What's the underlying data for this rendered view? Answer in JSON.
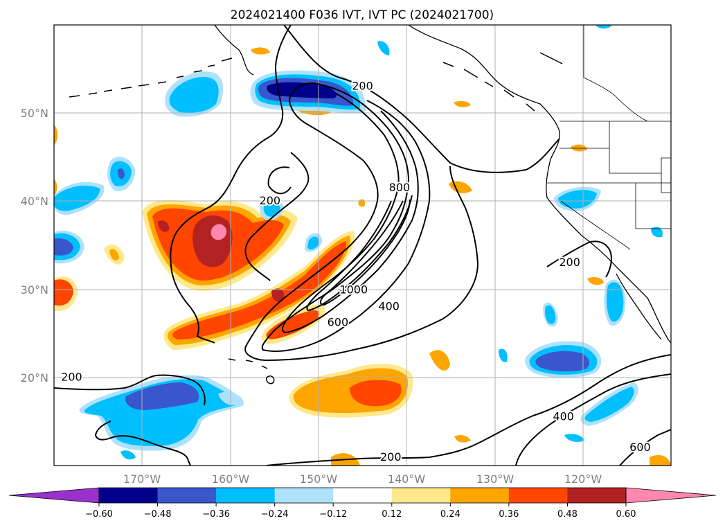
{
  "title": "2024021400 F036 IVT, IVT PC (2024021700)",
  "map": {
    "projection": "PlateCarree",
    "lon_range": [
      -180,
      -110
    ],
    "lat_range": [
      10,
      60
    ],
    "gridlines": true,
    "lat_ticks": [
      {
        "lat": 50,
        "label": "50°N"
      },
      {
        "lat": 40,
        "label": "40°N"
      },
      {
        "lat": 30,
        "label": "30°N"
      },
      {
        "lat": 20,
        "label": "20°N"
      }
    ],
    "lon_ticks": [
      {
        "lon": -170,
        "label": "170°W"
      },
      {
        "lon": -160,
        "label": "160°W"
      },
      {
        "lon": -150,
        "label": "150°W"
      },
      {
        "lon": -140,
        "label": "140°W"
      },
      {
        "lon": -130,
        "label": "130°W"
      },
      {
        "lon": -120,
        "label": "120°W"
      }
    ]
  },
  "ivt_contours": {
    "color": "#000000",
    "labels": [
      {
        "text": "200",
        "lon": -145.0,
        "lat": 53.0
      },
      {
        "text": "200",
        "lon": -155.5,
        "lat": 40.0
      },
      {
        "text": "800",
        "lon": -140.8,
        "lat": 41.5
      },
      {
        "text": "1000",
        "lon": -146.0,
        "lat": 29.9
      },
      {
        "text": "400",
        "lon": -142.0,
        "lat": 28.0
      },
      {
        "text": "600",
        "lon": -147.8,
        "lat": 26.2
      },
      {
        "text": "200",
        "lon": -178.0,
        "lat": 20.0
      },
      {
        "text": "200",
        "lon": -121.5,
        "lat": 33.0
      },
      {
        "text": "200",
        "lon": -141.8,
        "lat": 10.9
      },
      {
        "text": "400",
        "lon": -122.2,
        "lat": 15.5
      },
      {
        "text": "600",
        "lon": -113.5,
        "lat": 12.0
      }
    ]
  },
  "colorbar": {
    "bounds": [
      -0.6,
      -0.48,
      -0.36,
      -0.24,
      -0.12,
      0.12,
      0.24,
      0.36,
      0.48,
      0.6
    ],
    "tick_labels": [
      "−0.60",
      "−0.48",
      "−0.36",
      "−0.24",
      "−0.12",
      "0.12",
      "0.24",
      "0.36",
      "0.48",
      "0.60"
    ],
    "colors": [
      "#9932cc",
      "#00008b",
      "#3a56cc",
      "#00bfff",
      "#aee1fb",
      "#ffffff",
      "#ffe98a",
      "#ffa500",
      "#ff4500",
      "#b22222",
      "#ff87b0"
    ],
    "extend": "both"
  }
}
